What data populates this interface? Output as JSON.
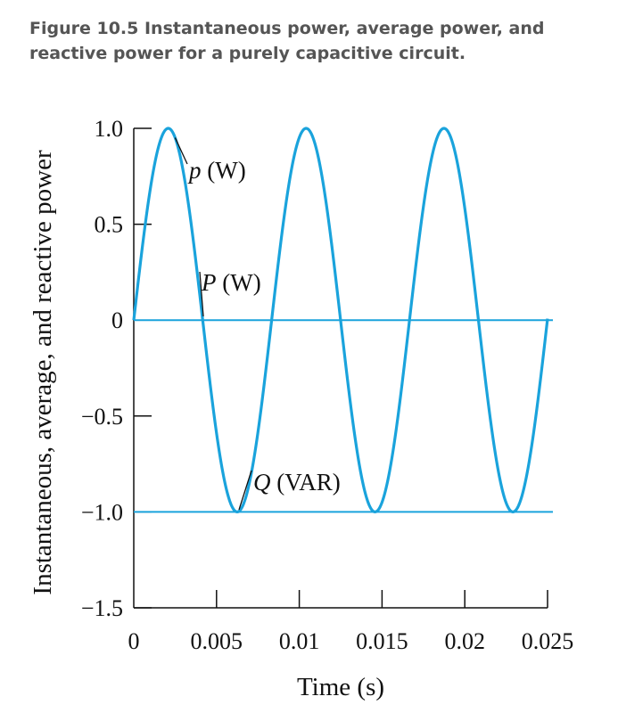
{
  "caption": "Figure 10.5 Instantaneous power, average power, and reactive power for a purely capacitive circuit.",
  "chart_data": {
    "type": "line",
    "xlabel": "Time (s)",
    "ylabel": "Instantaneous, average, and reactive power",
    "xlim": [
      0,
      0.025
    ],
    "ylim": [
      -1.5,
      1.0
    ],
    "x_ticks": [
      0,
      0.005,
      0.01,
      0.015,
      0.02,
      0.025
    ],
    "x_tick_labels": [
      "0",
      "0.005",
      "0.01",
      "0.015",
      "0.02",
      "0.025"
    ],
    "y_ticks": [
      1.0,
      0.5,
      0,
      -0.5,
      -1.0,
      -1.5
    ],
    "y_tick_labels": [
      "1.0",
      "0.5",
      "0",
      "−0.5",
      "−1.0",
      "−1.5"
    ],
    "grid": false,
    "color": "#1aa3dc",
    "series": [
      {
        "name": "p (W)",
        "function": "sin",
        "amplitude": 1.0,
        "period": 0.00833,
        "x_start": 0,
        "x_end": 0.025
      },
      {
        "name": "P (W)",
        "constant": 0
      },
      {
        "name": "Q (VAR)",
        "constant": -1.0
      }
    ],
    "annotations": [
      {
        "prefix": "p",
        "suffix": " (W)",
        "series": "p (W)"
      },
      {
        "prefix": "P",
        "suffix": " (W)",
        "series": "P (W)"
      },
      {
        "prefix": "Q",
        "suffix": " (VAR)",
        "series": "Q (VAR)"
      }
    ]
  }
}
